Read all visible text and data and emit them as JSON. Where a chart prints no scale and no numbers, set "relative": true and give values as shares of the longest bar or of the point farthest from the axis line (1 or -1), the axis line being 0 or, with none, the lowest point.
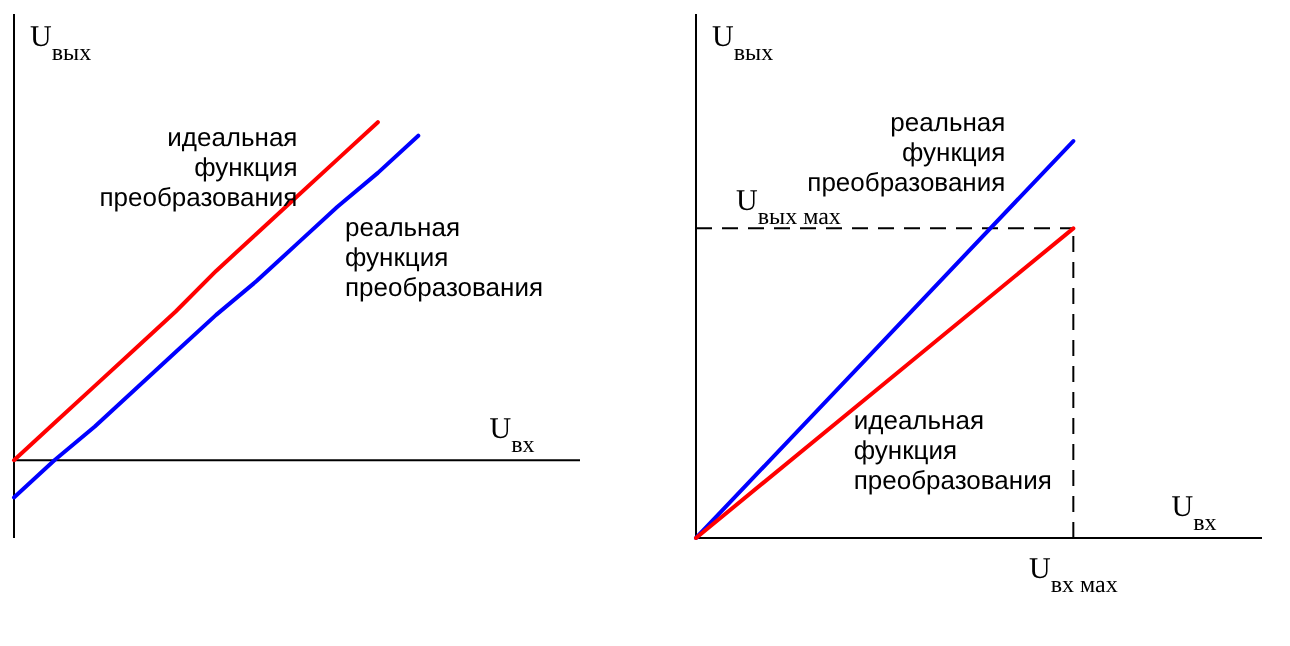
{
  "chart_data": [
    {
      "type": "line",
      "relative": true,
      "xlabel": "U$_{вх}$",
      "ylabel": "U$_{вых}$",
      "line_style": "solid",
      "categories": [
        null,
        null,
        null,
        null,
        null,
        null,
        null,
        null,
        null,
        null,
        null,
        null,
        null,
        null,
        null
      ],
      "series": [
        {
          "color": "#ff0000",
          "values": [
            0,
            0.11,
            0.22,
            0.33,
            0.44,
            0.56,
            0.67,
            0.78,
            0.89,
            1,
            null,
            null,
            null,
            null,
            null
          ]
        },
        {
          "color": "#0000ff",
          "values": [
            -0.11,
            0,
            0.1,
            0.21,
            0.32,
            0.43,
            0.53,
            0.64,
            0.75,
            0.85,
            0.96,
            null,
            null,
            null,
            null
          ]
        }
      ],
      "annotations": [
        "идеальная\nфункция\nпреобразования",
        "реальная\nфункция\nпреобразования"
      ]
    },
    {
      "type": "line",
      "relative": true,
      "xlabel": "U$_{вх}$",
      "ylabel": "U$_{вых}$",
      "line_style": "solid",
      "categories": [
        null,
        null,
        null,
        null
      ],
      "series": [
        {
          "color": "#0000ff",
          "values": [
            0,
            0.5,
            1,
            null
          ]
        },
        {
          "color": "#ff0000",
          "values": [
            0,
            0.39,
            0.78,
            null
          ]
        }
      ],
      "ref_lines": [
        {
          "axis": "y",
          "value": 0.78,
          "label": "U$_{вых мах}$",
          "line_style": "dashed"
        },
        {
          "axis": "x",
          "label": "U$_{вх мах}$",
          "line_style": "dashed"
        }
      ],
      "annotations": [
        "реальная\nфункция\nпреобразования",
        "идеальная\nфункция\nпреобразования"
      ]
    }
  ]
}
